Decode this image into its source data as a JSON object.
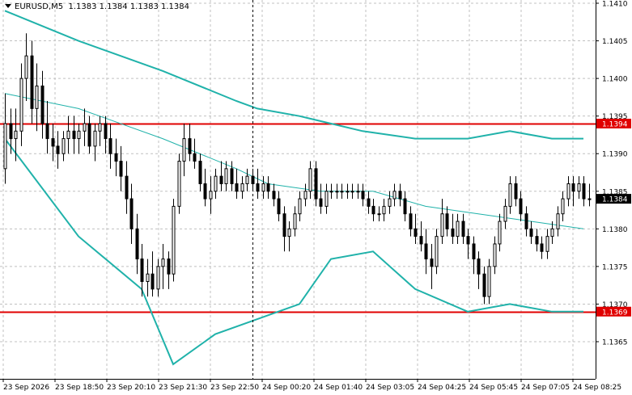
{
  "header": {
    "symbol_tf": "EURUSD,M5",
    "ohlc": "1.1383 1.1384 1.1383 1.1384"
  },
  "colors": {
    "background": "#ffffff",
    "grid": "#c0c0c0",
    "candles": "#000000",
    "band": "#20b2aa",
    "level": "#e00000",
    "price_label_bg": "#000000",
    "level_label_bg": "#e00000"
  },
  "chart_data": {
    "type": "candlestick",
    "symbol": "EURUSD",
    "timeframe": "M5",
    "ylim": [
      1.136,
      1.141
    ],
    "y_ticks": [
      "1.1410",
      "1.1405",
      "1.1400",
      "1.1395",
      "1.1390",
      "1.1385",
      "1.1380",
      "1.1375",
      "1.1370",
      "1.1365"
    ],
    "x_ticks": [
      "23 Sep 2026",
      "23 Sep 18:50",
      "23 Sep 20:10",
      "23 Sep 21:30",
      "23 Sep 22:50",
      "24 Sep 00:20",
      "24 Sep 01:40",
      "24 Sep 03:05",
      "24 Sep 04:25",
      "24 Sep 05:45",
      "24 Sep 07:05",
      "24 Sep 08:25"
    ],
    "horizontal_levels": [
      {
        "label": "1.1394",
        "value": 1.1394
      },
      {
        "label": "1.1369",
        "value": 1.1369
      }
    ],
    "current_price": {
      "label": "1.1384",
      "value": 1.1384
    },
    "grid": true,
    "period_separator_index": 47,
    "candles": [
      [
        1.1388,
        1.1398,
        1.1386,
        1.1394
      ],
      [
        1.1394,
        1.1396,
        1.139,
        1.1392
      ],
      [
        1.1392,
        1.1396,
        1.1389,
        1.1393
      ],
      [
        1.1393,
        1.1402,
        1.1391,
        1.14
      ],
      [
        1.14,
        1.1406,
        1.1397,
        1.1403
      ],
      [
        1.1403,
        1.1405,
        1.1394,
        1.1396
      ],
      [
        1.1396,
        1.1402,
        1.1393,
        1.1399
      ],
      [
        1.1399,
        1.1401,
        1.1392,
        1.1394
      ],
      [
        1.1394,
        1.1397,
        1.139,
        1.1392
      ],
      [
        1.1392,
        1.1394,
        1.1389,
        1.1391
      ],
      [
        1.1391,
        1.1393,
        1.1388,
        1.139
      ],
      [
        1.139,
        1.1393,
        1.1389,
        1.1392
      ],
      [
        1.1392,
        1.1395,
        1.139,
        1.1393
      ],
      [
        1.1393,
        1.1395,
        1.139,
        1.1392
      ],
      [
        1.1392,
        1.1394,
        1.139,
        1.1393
      ],
      [
        1.1393,
        1.1396,
        1.1391,
        1.1394
      ],
      [
        1.1394,
        1.1395,
        1.139,
        1.1391
      ],
      [
        1.1391,
        1.1394,
        1.1389,
        1.1393
      ],
      [
        1.1393,
        1.1395,
        1.1391,
        1.1394
      ],
      [
        1.1394,
        1.1395,
        1.139,
        1.1392
      ],
      [
        1.1392,
        1.1394,
        1.1388,
        1.139
      ],
      [
        1.139,
        1.1392,
        1.1387,
        1.1389
      ],
      [
        1.1389,
        1.1391,
        1.1385,
        1.1387
      ],
      [
        1.1387,
        1.1389,
        1.1382,
        1.1384
      ],
      [
        1.1384,
        1.1386,
        1.1378,
        1.138
      ],
      [
        1.138,
        1.1382,
        1.1374,
        1.1376
      ],
      [
        1.1376,
        1.1378,
        1.1371,
        1.1373
      ],
      [
        1.1373,
        1.1376,
        1.1371,
        1.1374
      ],
      [
        1.1374,
        1.1377,
        1.1371,
        1.1372
      ],
      [
        1.1372,
        1.1376,
        1.1371,
        1.1375
      ],
      [
        1.1375,
        1.1378,
        1.1372,
        1.1376
      ],
      [
        1.1376,
        1.1377,
        1.1372,
        1.1374
      ],
      [
        1.1374,
        1.1384,
        1.1373,
        1.1383
      ],
      [
        1.1383,
        1.139,
        1.1382,
        1.1389
      ],
      [
        1.1389,
        1.1394,
        1.1387,
        1.1392
      ],
      [
        1.1392,
        1.1394,
        1.1389,
        1.139
      ],
      [
        1.139,
        1.1392,
        1.1388,
        1.1389
      ],
      [
        1.1389,
        1.139,
        1.1385,
        1.1386
      ],
      [
        1.1386,
        1.1388,
        1.1383,
        1.1384
      ],
      [
        1.1384,
        1.1387,
        1.1382,
        1.1385
      ],
      [
        1.1385,
        1.1388,
        1.1384,
        1.1387
      ],
      [
        1.1387,
        1.1389,
        1.1385,
        1.1386
      ],
      [
        1.1386,
        1.1389,
        1.1385,
        1.1388
      ],
      [
        1.1388,
        1.1389,
        1.1385,
        1.1386
      ],
      [
        1.1386,
        1.1388,
        1.1384,
        1.1385
      ],
      [
        1.1385,
        1.1387,
        1.1384,
        1.1386
      ],
      [
        1.1386,
        1.1388,
        1.1385,
        1.1387
      ],
      [
        1.1387,
        1.1388,
        1.1385,
        1.1386
      ],
      [
        1.1386,
        1.1388,
        1.1384,
        1.1385
      ],
      [
        1.1385,
        1.1387,
        1.1384,
        1.1386
      ],
      [
        1.1386,
        1.1387,
        1.1384,
        1.1385
      ],
      [
        1.1385,
        1.1386,
        1.1383,
        1.1384
      ],
      [
        1.1384,
        1.1385,
        1.1381,
        1.1382
      ],
      [
        1.1382,
        1.1383,
        1.1377,
        1.1379
      ],
      [
        1.1379,
        1.1381,
        1.1377,
        1.138
      ],
      [
        1.138,
        1.1383,
        1.1379,
        1.1382
      ],
      [
        1.1382,
        1.1385,
        1.1381,
        1.1384
      ],
      [
        1.1384,
        1.1386,
        1.1383,
        1.1385
      ],
      [
        1.1385,
        1.1389,
        1.1384,
        1.1388
      ],
      [
        1.1388,
        1.1389,
        1.1383,
        1.1384
      ],
      [
        1.1384,
        1.1386,
        1.1382,
        1.1383
      ],
      [
        1.1383,
        1.1386,
        1.1382,
        1.1385
      ],
      [
        1.1385,
        1.1386,
        1.1384,
        1.1385
      ],
      [
        1.1385,
        1.1386,
        1.1384,
        1.1385
      ],
      [
        1.1385,
        1.1386,
        1.1384,
        1.1385
      ],
      [
        1.1385,
        1.1386,
        1.1384,
        1.1385
      ],
      [
        1.1385,
        1.1386,
        1.1384,
        1.1385
      ],
      [
        1.1385,
        1.1386,
        1.1384,
        1.1385
      ],
      [
        1.1385,
        1.1386,
        1.1383,
        1.1384
      ],
      [
        1.1384,
        1.1385,
        1.1382,
        1.1383
      ],
      [
        1.1383,
        1.1384,
        1.1381,
        1.1382
      ],
      [
        1.1382,
        1.1383,
        1.1381,
        1.1382
      ],
      [
        1.1382,
        1.1384,
        1.1381,
        1.1383
      ],
      [
        1.1383,
        1.1385,
        1.1382,
        1.1384
      ],
      [
        1.1384,
        1.1386,
        1.1383,
        1.1385
      ],
      [
        1.1385,
        1.1386,
        1.1383,
        1.1384
      ],
      [
        1.1384,
        1.1385,
        1.1381,
        1.1382
      ],
      [
        1.1382,
        1.1383,
        1.1379,
        1.138
      ],
      [
        1.138,
        1.1382,
        1.1378,
        1.1379
      ],
      [
        1.1379,
        1.1381,
        1.1377,
        1.1378
      ],
      [
        1.1378,
        1.138,
        1.1374,
        1.1376
      ],
      [
        1.1376,
        1.1378,
        1.1372,
        1.1375
      ],
      [
        1.1375,
        1.138,
        1.1374,
        1.1379
      ],
      [
        1.1379,
        1.1384,
        1.1378,
        1.1382
      ],
      [
        1.1382,
        1.1383,
        1.1379,
        1.138
      ],
      [
        1.138,
        1.1382,
        1.1378,
        1.1379
      ],
      [
        1.1379,
        1.1382,
        1.1378,
        1.1381
      ],
      [
        1.1381,
        1.1382,
        1.1378,
        1.1379
      ],
      [
        1.1379,
        1.138,
        1.1376,
        1.1378
      ],
      [
        1.1378,
        1.1379,
        1.1374,
        1.1376
      ],
      [
        1.1376,
        1.1377,
        1.1372,
        1.1374
      ],
      [
        1.1374,
        1.1375,
        1.137,
        1.1371
      ],
      [
        1.1371,
        1.1376,
        1.137,
        1.1375
      ],
      [
        1.1375,
        1.1379,
        1.1374,
        1.1378
      ],
      [
        1.1378,
        1.1382,
        1.1377,
        1.1381
      ],
      [
        1.1381,
        1.1384,
        1.138,
        1.1383
      ],
      [
        1.1383,
        1.1387,
        1.1382,
        1.1386
      ],
      [
        1.1386,
        1.1387,
        1.1383,
        1.1384
      ],
      [
        1.1384,
        1.1385,
        1.1381,
        1.1382
      ],
      [
        1.1382,
        1.1383,
        1.1379,
        1.138
      ],
      [
        1.138,
        1.1381,
        1.1378,
        1.1379
      ],
      [
        1.1379,
        1.138,
        1.1377,
        1.1378
      ],
      [
        1.1378,
        1.1379,
        1.1376,
        1.1377
      ],
      [
        1.1377,
        1.138,
        1.1376,
        1.1379
      ],
      [
        1.1379,
        1.1381,
        1.1378,
        1.138
      ],
      [
        1.138,
        1.1383,
        1.1379,
        1.1382
      ],
      [
        1.1382,
        1.1385,
        1.1381,
        1.1384
      ],
      [
        1.1384,
        1.1387,
        1.1383,
        1.1386
      ],
      [
        1.1386,
        1.1387,
        1.1383,
        1.1385
      ],
      [
        1.1385,
        1.1387,
        1.1384,
        1.1386
      ],
      [
        1.1386,
        1.1387,
        1.1383,
        1.1384
      ],
      [
        1.1384,
        1.1386,
        1.1383,
        1.1384
      ]
    ],
    "bands": {
      "upper": [
        [
          0,
          1.1409
        ],
        [
          14,
          1.1405
        ],
        [
          30,
          1.1401
        ],
        [
          44,
          1.1397
        ],
        [
          48,
          1.1396
        ],
        [
          56,
          1.1395
        ],
        [
          62,
          1.1394
        ],
        [
          68,
          1.1393
        ],
        [
          78,
          1.1392
        ],
        [
          88,
          1.1392
        ],
        [
          96,
          1.1393
        ],
        [
          104,
          1.1392
        ],
        [
          110,
          1.1392
        ]
      ],
      "middle": [
        [
          0,
          1.1398
        ],
        [
          14,
          1.1396
        ],
        [
          30,
          1.1392
        ],
        [
          44,
          1.1388
        ],
        [
          50,
          1.1386
        ],
        [
          60,
          1.1385
        ],
        [
          70,
          1.1385
        ],
        [
          80,
          1.1383
        ],
        [
          90,
          1.1382
        ],
        [
          100,
          1.1381
        ],
        [
          110,
          1.138
        ]
      ],
      "lower": [
        [
          0,
          1.1392
        ],
        [
          14,
          1.1379
        ],
        [
          26,
          1.1372
        ],
        [
          32,
          1.1362
        ],
        [
          40,
          1.1366
        ],
        [
          48,
          1.1368
        ],
        [
          56,
          1.137
        ],
        [
          62,
          1.1376
        ],
        [
          70,
          1.1377
        ],
        [
          78,
          1.1372
        ],
        [
          88,
          1.1369
        ],
        [
          96,
          1.137
        ],
        [
          104,
          1.1369
        ],
        [
          110,
          1.1369
        ]
      ]
    }
  }
}
